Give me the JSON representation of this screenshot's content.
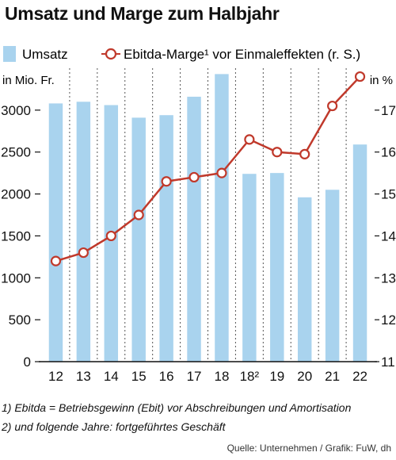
{
  "title": "Umsatz und Marge zum Halbjahr",
  "legend": {
    "bar_label": "Umsatz",
    "line_label": "Ebitda-Marge¹ vor Einmaleffekten (r. S.)"
  },
  "axis_left_unit": "in Mio. Fr.",
  "axis_right_unit": "in %",
  "footnotes": {
    "note1": "1) Ebitda = Betriebsgewinn (Ebit) vor Abschreibungen und Amortisation",
    "note2": "2) und folgende Jahre: fortgeführtes Geschäft"
  },
  "source": "Quelle: Unternehmen / Grafik: FuW, dh",
  "colors": {
    "bar": "#a9d3ee",
    "line": "#c0392b",
    "marker_fill": "#ffffff",
    "grid": "#555555"
  },
  "chart_data": {
    "type": "bar",
    "categories": [
      "12",
      "13",
      "14",
      "15",
      "16",
      "17",
      "18",
      "18²",
      "19",
      "20",
      "21",
      "22"
    ],
    "series": [
      {
        "name": "Umsatz",
        "type": "bar",
        "axis": "left",
        "values": [
          3080,
          3100,
          3060,
          2910,
          2940,
          3160,
          3430,
          2240,
          2250,
          1960,
          2050,
          2590
        ]
      },
      {
        "name": "Ebitda-Marge¹ vor Einmaleffekten (r. S.)",
        "type": "line",
        "axis": "right",
        "values": [
          13.4,
          13.6,
          14.0,
          14.5,
          15.3,
          15.4,
          15.5,
          16.3,
          16.0,
          15.95,
          17.1,
          17.8
        ]
      }
    ],
    "y_left": {
      "label": "in Mio. Fr.",
      "min": 0,
      "max": 3500,
      "ticks": [
        0,
        500,
        1000,
        1500,
        2000,
        2500,
        3000
      ]
    },
    "y_right": {
      "label": "in %",
      "min": 11,
      "max": 18,
      "ticks": [
        11,
        12,
        13,
        14,
        15,
        16,
        17
      ]
    },
    "grid": "vertical dashed",
    "legend_position": "top"
  }
}
